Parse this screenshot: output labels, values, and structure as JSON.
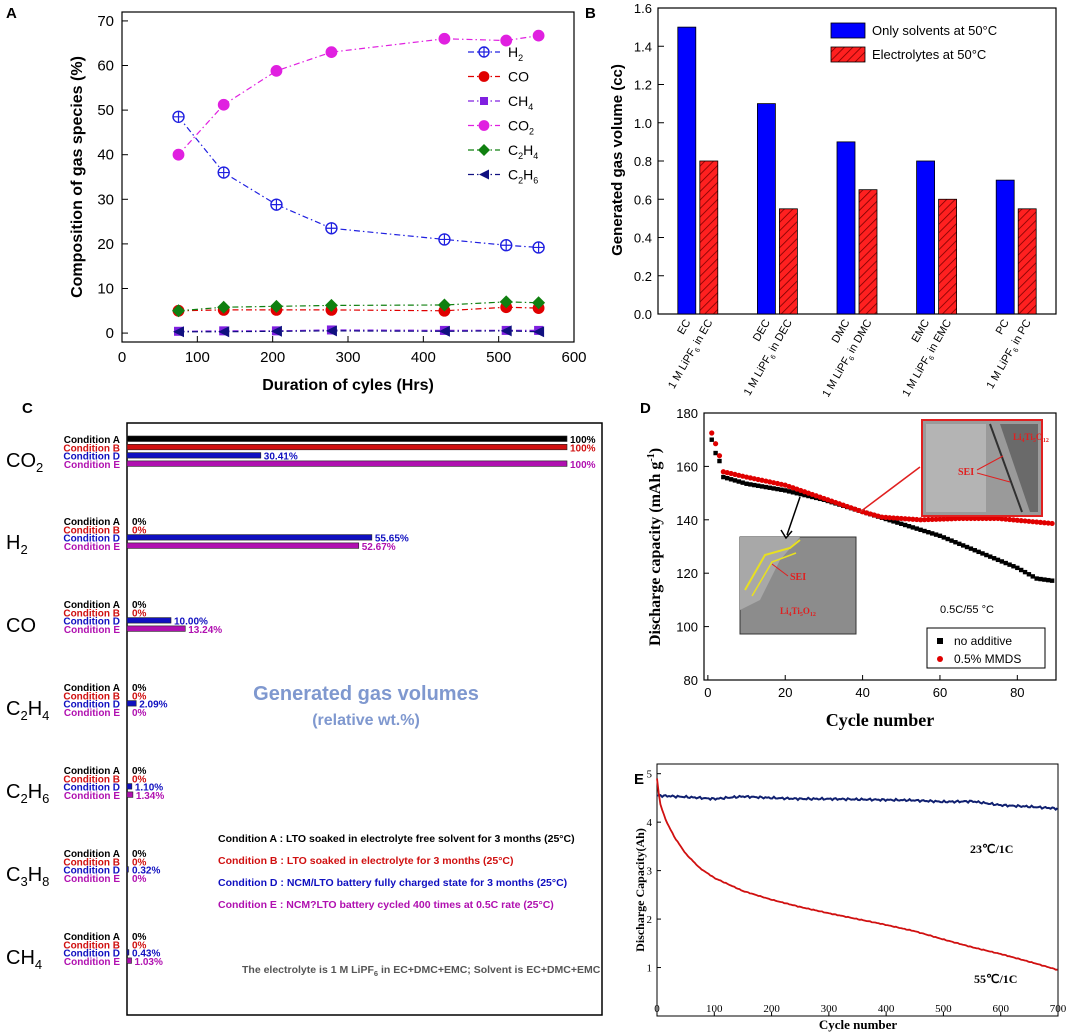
{
  "chart_data": [
    {
      "panel": "A",
      "type": "line",
      "xlabel": "Duration of cyles (Hrs)",
      "ylabel": "Composition of gas species (%)",
      "xlim": [
        0,
        600
      ],
      "ylim": [
        -2,
        72
      ],
      "xticks": [
        0,
        100,
        200,
        300,
        400,
        500,
        600
      ],
      "yticks": [
        0,
        10,
        20,
        30,
        40,
        50,
        60,
        70
      ],
      "x": [
        75,
        135,
        205,
        278,
        428,
        510,
        553
      ],
      "series": [
        {
          "key": "H2",
          "name": "H",
          "sub": "2",
          "color": "#2020e0",
          "marker": "circle-plus",
          "values": [
            48.5,
            36,
            28.8,
            23.5,
            21,
            19.7,
            19.2
          ]
        },
        {
          "key": "CO",
          "name": "CO",
          "sub": "",
          "color": "#e00000",
          "marker": "circle",
          "values": [
            5,
            5.2,
            5.2,
            5.2,
            5,
            5.8,
            5.6
          ]
        },
        {
          "key": "CH4",
          "name": "CH",
          "sub": "4",
          "color": "#8020e0",
          "marker": "square",
          "values": [
            0.4,
            0.5,
            0.5,
            0.7,
            0.6,
            0.6,
            0.6
          ]
        },
        {
          "key": "CO2",
          "name": "CO",
          "sub": "2",
          "color": "#e020e0",
          "marker": "circle",
          "values": [
            40,
            51.2,
            58.8,
            63,
            66,
            65.6,
            66.7
          ]
        },
        {
          "key": "C2H4",
          "name": "C",
          "sub": "2",
          "name2": "H",
          "sub2": "4",
          "color": "#108010",
          "marker": "diamond",
          "values": [
            5,
            5.8,
            6,
            6.2,
            6.3,
            7,
            6.8
          ]
        },
        {
          "key": "C2H6",
          "name": "C",
          "sub": "2",
          "name2": "H",
          "sub2": "6",
          "color": "#101080",
          "marker": "tri-left",
          "values": [
            0.3,
            0.3,
            0.4,
            0.5,
            0.4,
            0.5,
            0.3
          ]
        }
      ]
    },
    {
      "panel": "B",
      "type": "bar",
      "ylabel": "Generated gas volume (cc)",
      "ylim": [
        0,
        1.6
      ],
      "yticks": [
        "0.0",
        "0.2",
        "0.4",
        "0.6",
        "0.8",
        "1.0",
        "1.2",
        "1.4",
        "1.6"
      ],
      "groups": [
        {
          "solvent": "EC",
          "electrolyte_pre": "1 M LiPF",
          "electrolyte_sub": "6",
          "electrolyte_post": " in EC"
        },
        {
          "solvent": "DEC",
          "electrolyte_pre": "1 M LiPF",
          "electrolyte_sub": "6",
          "electrolyte_post": " in DEC"
        },
        {
          "solvent": "DMC",
          "electrolyte_pre": "1 M LiPF",
          "electrolyte_sub": "6",
          "electrolyte_post": " in DMC"
        },
        {
          "solvent": "EMC",
          "electrolyte_pre": "1 M LiPF",
          "electrolyte_sub": "6",
          "electrolyte_post": " in EMC"
        },
        {
          "solvent": "PC",
          "electrolyte_pre": "1 M LiPF",
          "electrolyte_sub": "6",
          "electrolyte_post": " in PC"
        }
      ],
      "series": [
        {
          "name": "Only solvents at 50°C",
          "color": "#0000ff",
          "values": [
            1.5,
            1.1,
            0.9,
            0.8,
            0.7
          ]
        },
        {
          "name": "Electrolytes at 50°C",
          "color": "#ff0000",
          "values": [
            0.8,
            0.55,
            0.65,
            0.6,
            0.55
          ]
        }
      ]
    },
    {
      "panel": "C",
      "type": "bar",
      "orientation": "horizontal",
      "title": "Generated gas volumes",
      "subtitle": "(relative wt.%)",
      "condition_colors": [
        "#000000",
        "#d01010",
        "#1010c0",
        "#b010b0"
      ],
      "groups": [
        {
          "gas": "CO",
          "gas_sub": "2",
          "gas_tail": "",
          "conditions": [
            "Condition A",
            "Condition B",
            "Condition D",
            "Condition E"
          ],
          "values": [
            100,
            100,
            30.41,
            100
          ],
          "labels": [
            "100%",
            "100%",
            "30.41%",
            "100%"
          ]
        },
        {
          "gas": "H",
          "gas_sub": "2",
          "gas_tail": "",
          "conditions": [
            "Condition A",
            "Condition B",
            "Condition D",
            "Condition E"
          ],
          "values": [
            0,
            0,
            55.65,
            52.67
          ],
          "labels": [
            "0%",
            "0%",
            "55.65%",
            "52.67%"
          ]
        },
        {
          "gas": "CO",
          "gas_sub": "",
          "gas_tail": "",
          "conditions": [
            "Condition A",
            "Condition B",
            "Condition D",
            "Condition E"
          ],
          "values": [
            0,
            0,
            10.0,
            13.24
          ],
          "labels": [
            "0%",
            "0%",
            "10.00%",
            "13.24%"
          ]
        },
        {
          "gas": "C",
          "gas_sub": "2",
          "gas_tail": "H",
          "gas_sub2": "4",
          "conditions": [
            "Condition A",
            "Condition B",
            "Condition D",
            "Condition E"
          ],
          "values": [
            0,
            0,
            2.09,
            0
          ],
          "labels": [
            "0%",
            "0%",
            "2.09%",
            "0%"
          ]
        },
        {
          "gas": "C",
          "gas_sub": "2",
          "gas_tail": "H",
          "gas_sub2": "6",
          "conditions": [
            "Condition A",
            "Condition B",
            "Condition D",
            "Condition E"
          ],
          "values": [
            0,
            0,
            1.1,
            1.34
          ],
          "labels": [
            "0%",
            "0%",
            "1.10%",
            "1.34%"
          ]
        },
        {
          "gas": "C",
          "gas_sub": "3",
          "gas_tail": "H",
          "gas_sub2": "8",
          "conditions": [
            "Condition A",
            "Condition B",
            "Condition D",
            "Condition E"
          ],
          "values": [
            0,
            0,
            0.32,
            0
          ],
          "labels": [
            "0%",
            "0%",
            "0.32%",
            "0%"
          ]
        },
        {
          "gas": "CH",
          "gas_sub": "4",
          "gas_tail": "",
          "conditions": [
            "Condition A",
            "Condition B",
            "Condition D",
            "Condition E"
          ],
          "values": [
            0,
            0,
            0.43,
            1.03
          ],
          "labels": [
            "0%",
            "0%",
            "0.43%",
            "1.03%"
          ]
        }
      ],
      "legend": [
        "Condition A : LTO soaked in electrolyte free solvent for 3 months (25°C)",
        "Condition B : LTO soaked in electrolyte for 3 months (25°C)",
        "Condition D : NCM/LTO battery fully charged state for 3 months (25°C)",
        "Condition E : NCM?LTO battery cycled 400 times at 0.5C rate (25°C)"
      ],
      "note_pre": "The electrolyte is 1 M LiPF",
      "note_sub": "6",
      "note_post": " in EC+DMC+EMC; Solvent is EC+DMC+EMC"
    },
    {
      "panel": "D",
      "type": "scatter",
      "xlabel": "Cycle number",
      "ylabel_pre": "Discharge capacity (mAh g",
      "ylabel_sup": "-1",
      "ylabel_post": ")",
      "xlim": [
        -1,
        90
      ],
      "ylim": [
        80,
        180
      ],
      "xticks": [
        0,
        20,
        40,
        60,
        80
      ],
      "yticks": [
        80,
        100,
        120,
        140,
        160,
        180
      ],
      "condition": "0.5C/55 °C",
      "inset_label_lto": "Li4Ti5O12",
      "inset_label_sei": "SEI",
      "series": [
        {
          "name": "no additive",
          "color": "#000000",
          "marker": "square",
          "keypoints": [
            [
              1,
              170
            ],
            [
              2,
              165
            ],
            [
              3,
              162
            ],
            [
              4,
              156
            ],
            [
              10,
              153.5
            ],
            [
              20,
              151
            ],
            [
              30,
              147.5
            ],
            [
              40,
              143
            ],
            [
              50,
              138.5
            ],
            [
              60,
              134
            ],
            [
              70,
              128
            ],
            [
              80,
              122
            ],
            [
              85,
              118
            ],
            [
              90,
              117
            ]
          ]
        },
        {
          "name": "0.5% MMDS",
          "color": "#e00000",
          "marker": "circle",
          "keypoints": [
            [
              1,
              172.5
            ],
            [
              2,
              168.5
            ],
            [
              3,
              164
            ],
            [
              4,
              158
            ],
            [
              10,
              156
            ],
            [
              20,
              153
            ],
            [
              30,
              148
            ],
            [
              40,
              143
            ],
            [
              45,
              141
            ],
            [
              55,
              140
            ],
            [
              65,
              140.5
            ],
            [
              75,
              140.5
            ],
            [
              90,
              138.5
            ]
          ]
        }
      ]
    },
    {
      "panel": "E",
      "type": "line",
      "xlabel": "Cycle number",
      "ylabel": "Discharge Capacity(Ah)",
      "xlim": [
        0,
        700
      ],
      "ylim": [
        0,
        5.2
      ],
      "xticks": [
        0,
        100,
        200,
        300,
        400,
        500,
        600,
        700
      ],
      "yticks": [
        1,
        2,
        3,
        4,
        5
      ],
      "series": [
        {
          "name": "23℃/1C",
          "color": "#102070",
          "keypoints": [
            [
              0,
              4.55
            ],
            [
              50,
              4.52
            ],
            [
              100,
              4.48
            ],
            [
              150,
              4.53
            ],
            [
              200,
              4.5
            ],
            [
              250,
              4.48
            ],
            [
              300,
              4.48
            ],
            [
              350,
              4.47
            ],
            [
              400,
              4.46
            ],
            [
              450,
              4.45
            ],
            [
              500,
              4.42
            ],
            [
              550,
              4.43
            ],
            [
              600,
              4.35
            ],
            [
              650,
              4.32
            ],
            [
              700,
              4.28
            ]
          ]
        },
        {
          "name": "55℃/1C",
          "color": "#d01010",
          "keypoints": [
            [
              0,
              4.9
            ],
            [
              5,
              4.4
            ],
            [
              15,
              4.05
            ],
            [
              30,
              3.7
            ],
            [
              50,
              3.35
            ],
            [
              75,
              3.05
            ],
            [
              100,
              2.85
            ],
            [
              150,
              2.58
            ],
            [
              200,
              2.4
            ],
            [
              250,
              2.25
            ],
            [
              300,
              2.12
            ],
            [
              350,
              2.0
            ],
            [
              400,
              1.88
            ],
            [
              450,
              1.75
            ],
            [
              500,
              1.58
            ],
            [
              550,
              1.42
            ],
            [
              600,
              1.28
            ],
            [
              650,
              1.12
            ],
            [
              700,
              0.95
            ]
          ]
        }
      ]
    }
  ],
  "panel_labels": [
    "A",
    "B",
    "C",
    "D",
    "E"
  ]
}
